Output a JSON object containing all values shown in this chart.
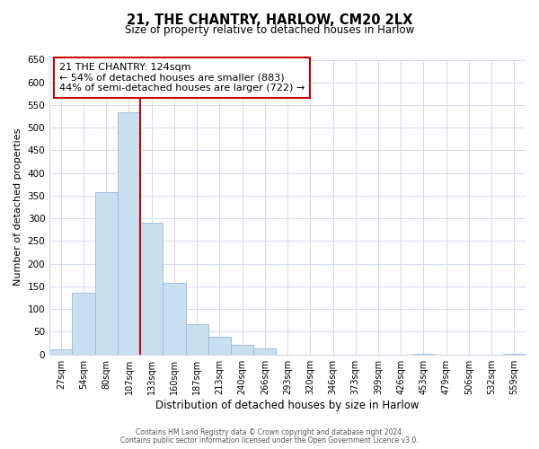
{
  "title": "21, THE CHANTRY, HARLOW, CM20 2LX",
  "subtitle": "Size of property relative to detached houses in Harlow",
  "xlabel": "Distribution of detached houses by size in Harlow",
  "ylabel": "Number of detached properties",
  "bar_labels": [
    "27sqm",
    "54sqm",
    "80sqm",
    "107sqm",
    "133sqm",
    "160sqm",
    "187sqm",
    "213sqm",
    "240sqm",
    "266sqm",
    "293sqm",
    "320sqm",
    "346sqm",
    "373sqm",
    "399sqm",
    "426sqm",
    "453sqm",
    "479sqm",
    "506sqm",
    "532sqm",
    "559sqm"
  ],
  "bar_values": [
    12,
    137,
    358,
    535,
    291,
    157,
    66,
    40,
    22,
    14,
    0,
    0,
    0,
    0,
    0,
    0,
    2,
    0,
    0,
    0,
    2
  ],
  "bar_color": "#c8dff0",
  "bar_edge_color": "#9ab8d8",
  "red_line_after_index": 3,
  "highlight_color": "#cc0000",
  "ylim": [
    0,
    650
  ],
  "yticks": [
    0,
    50,
    100,
    150,
    200,
    250,
    300,
    350,
    400,
    450,
    500,
    550,
    600,
    650
  ],
  "annotation_title": "21 THE CHANTRY: 124sqm",
  "annotation_line1": "← 54% of detached houses are smaller (883)",
  "annotation_line2": "44% of semi-detached houses are larger (722) →",
  "annotation_box_color": "#ffffff",
  "annotation_box_edge": "#cc0000",
  "footer1": "Contains HM Land Registry data © Crown copyright and database right 2024.",
  "footer2": "Contains public sector information licensed under the Open Government Licence v3.0.",
  "background_color": "#ffffff",
  "grid_color": "#d0daea"
}
